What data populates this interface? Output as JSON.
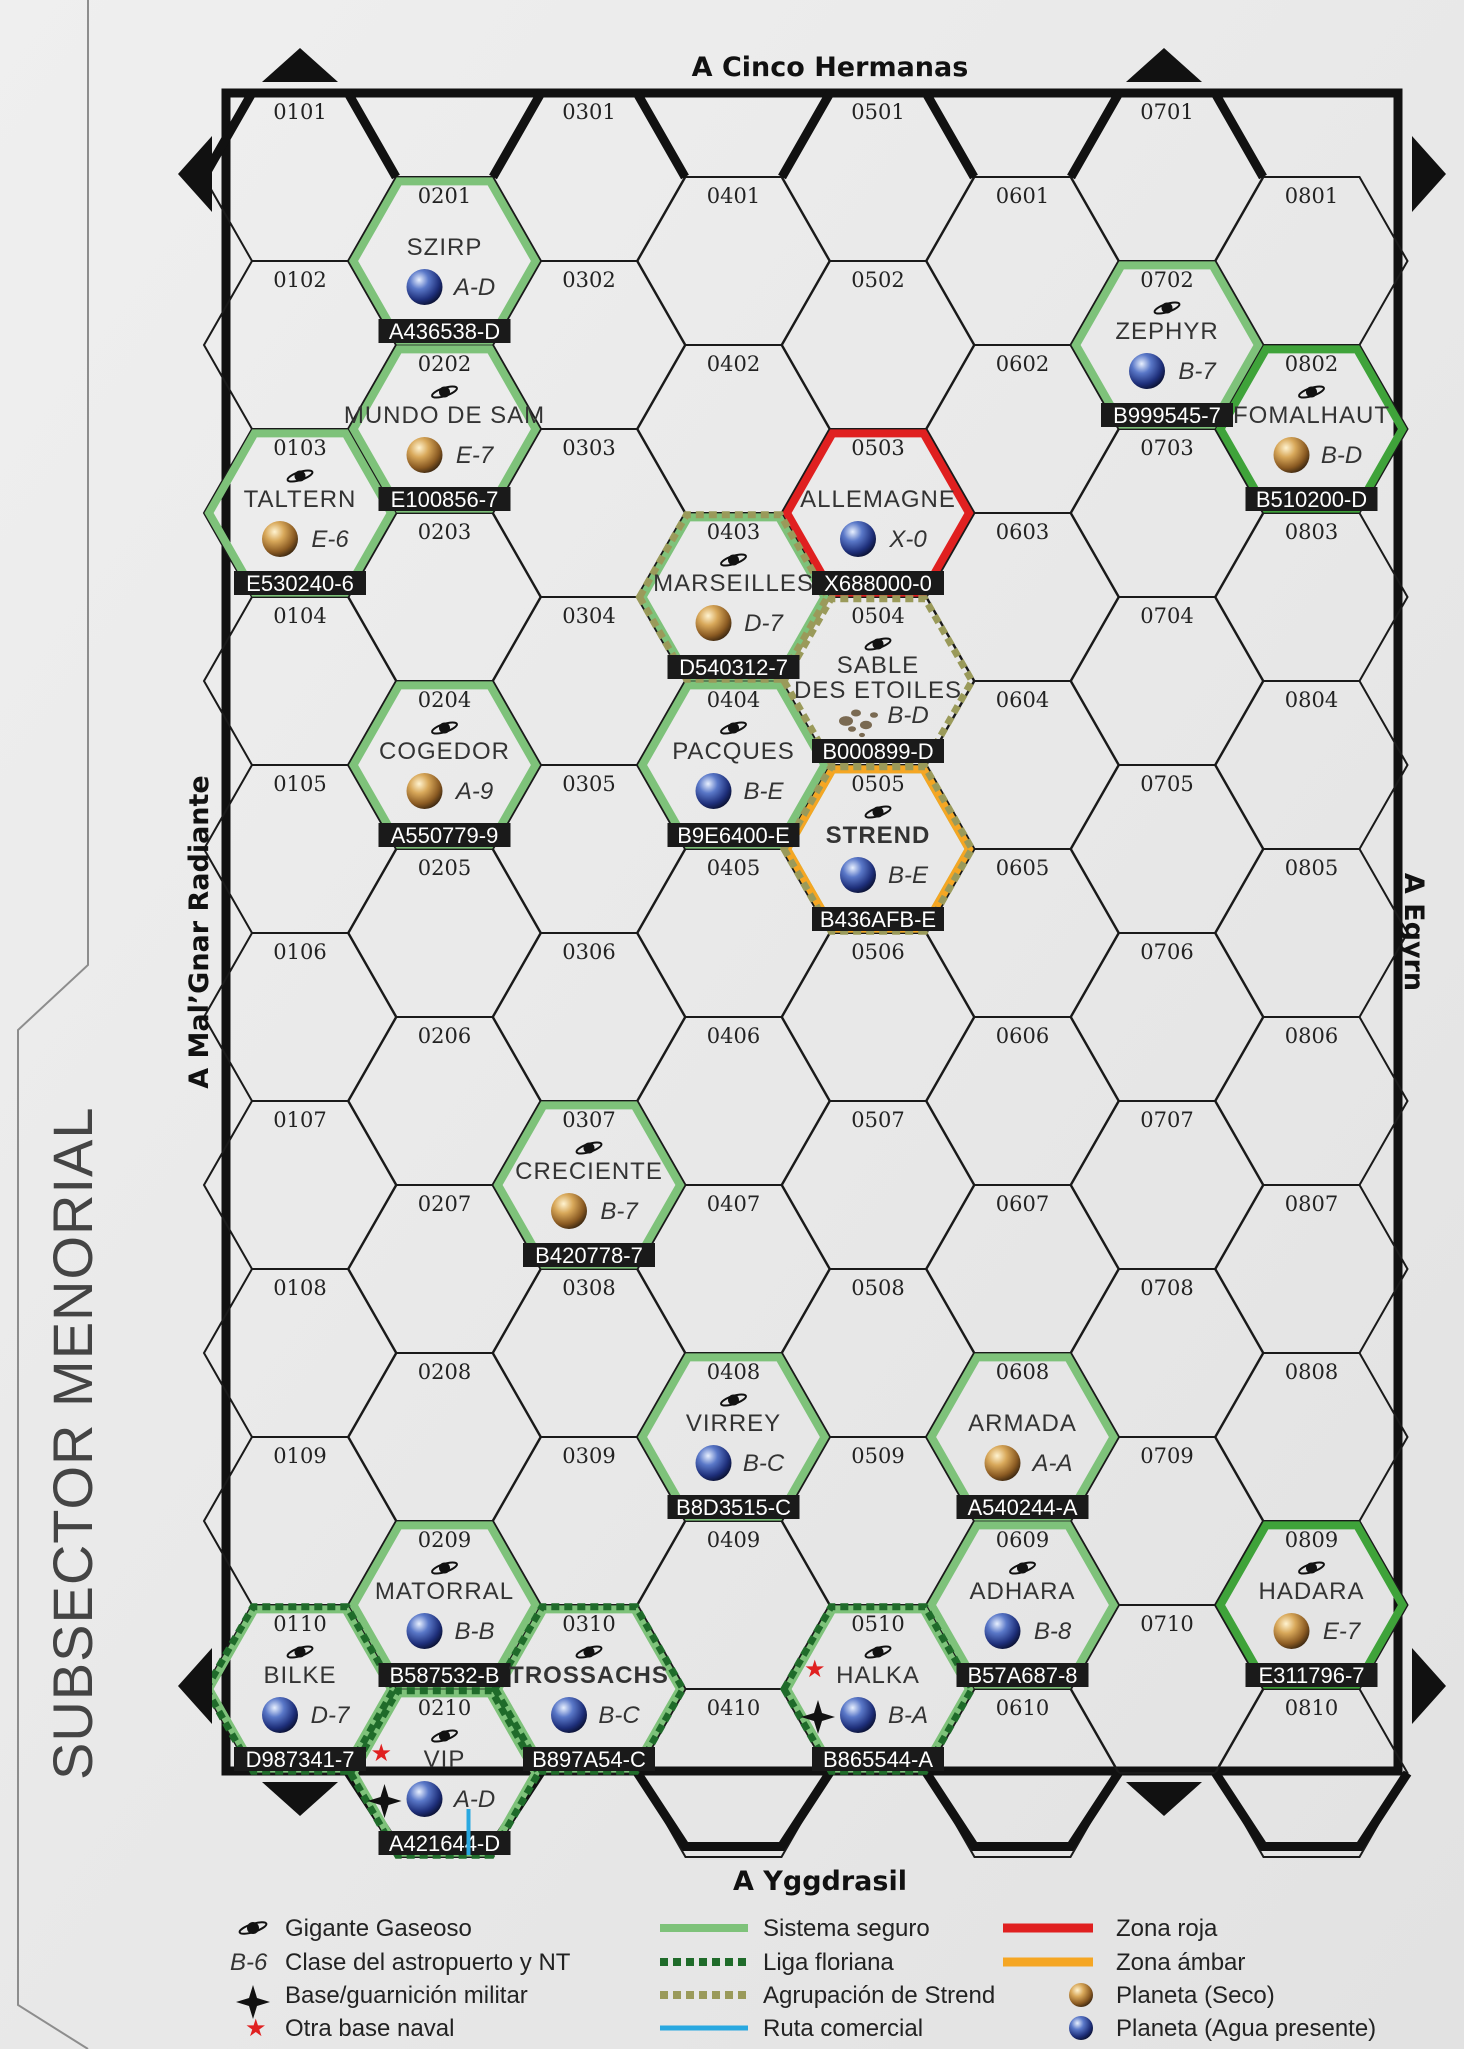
{
  "subsector_title": "SUBSECTOR MENORIAL",
  "directions": {
    "top": "A Cinco Hermanas",
    "bottom": "A Yggdrasil",
    "left": "A Mal’Gnar Radiante",
    "right": "A Egyrn"
  },
  "grid": {
    "cols": 8,
    "rows": 10
  },
  "colors": {
    "safe": "#7ec27a",
    "safe_strong": "#3fa33a",
    "red_zone": "#e02020",
    "amber_zone": "#f5a623",
    "florian": "#1f6b2a",
    "strend_group": "#9a9a5a",
    "trade_route": "#29a8e0",
    "uwp_bg": "#1a1a1a",
    "strend_name": "#e02020"
  },
  "worlds": [
    {
      "hex": "0201",
      "name": "SZIRP",
      "cls": "A-D",
      "uwp": "A436538-D",
      "planet": "water",
      "gas": false
    },
    {
      "hex": "0202",
      "name": "MUNDO DE SAM",
      "cls": "E-7",
      "uwp": "E100856-7",
      "planet": "dry",
      "gas": true
    },
    {
      "hex": "0103",
      "name": "TALTERN",
      "cls": "E-6",
      "uwp": "E530240-6",
      "planet": "dry",
      "gas": true
    },
    {
      "hex": "0204",
      "name": "COGEDOR",
      "cls": "A-9",
      "uwp": "A550779-9",
      "planet": "dry",
      "gas": true
    },
    {
      "hex": "0307",
      "name": "CRECIENTE",
      "cls": "B-7",
      "uwp": "B420778-7",
      "planet": "dry",
      "gas": true
    },
    {
      "hex": "0403",
      "name": "MARSEILLES",
      "cls": "D-7",
      "uwp": "D540312-7",
      "planet": "dry",
      "gas": true
    },
    {
      "hex": "0404",
      "name": "PACQUES",
      "cls": "B-E",
      "uwp": "B9E6400-E",
      "planet": "water",
      "gas": true
    },
    {
      "hex": "0503",
      "name": "ALLEMAGNE",
      "cls": "X-0",
      "uwp": "X688000-0",
      "planet": "water",
      "gas": false
    },
    {
      "hex": "0504",
      "name": "SABLE",
      "name2": "DES ETOILES",
      "cls": "B-D",
      "uwp": "B000899-D",
      "planet": "asteroid",
      "gas": true
    },
    {
      "hex": "0505",
      "name": "STREND",
      "cls": "B-E",
      "uwp": "B436AFB-E",
      "planet": "water",
      "gas": true,
      "highlight": true
    },
    {
      "hex": "0408",
      "name": "VIRREY",
      "cls": "B-C",
      "uwp": "B8D3515-C",
      "planet": "water",
      "gas": true
    },
    {
      "hex": "0608",
      "name": "ARMADA",
      "cls": "A-A",
      "uwp": "A540244-A",
      "planet": "dry",
      "gas": false
    },
    {
      "hex": "0702",
      "name": "ZEPHYR",
      "cls": "B-7",
      "uwp": "B999545-7",
      "planet": "water",
      "gas": true
    },
    {
      "hex": "0802",
      "name": "FOMALHAUT",
      "cls": "B-D",
      "uwp": "B510200-D",
      "planet": "dry",
      "gas": true
    },
    {
      "hex": "0209",
      "name": "MATORRAL",
      "cls": "B-B",
      "uwp": "B587532-B",
      "planet": "water",
      "gas": true
    },
    {
      "hex": "0110",
      "name": "BILKE",
      "cls": "D-7",
      "uwp": "D987341-7",
      "planet": "water",
      "gas": true
    },
    {
      "hex": "0210",
      "name": "VIP",
      "cls": "A-D",
      "uwp": "A421644-D",
      "planet": "water",
      "gas": true,
      "military": true,
      "naval": true
    },
    {
      "hex": "0310",
      "name": "TROSSACHS",
      "cls": "B-C",
      "uwp": "B897A54-C",
      "planet": "water",
      "gas": true,
      "bold": true
    },
    {
      "hex": "0510",
      "name": "HALKA",
      "cls": "B-A",
      "uwp": "B865544-A",
      "planet": "water",
      "gas": true,
      "military": true,
      "naval": true
    },
    {
      "hex": "0609",
      "name": "ADHARA",
      "cls": "B-8",
      "uwp": "B57A687-8",
      "planet": "water",
      "gas": true
    },
    {
      "hex": "0809",
      "name": "HADARA",
      "cls": "E-7",
      "uwp": "E311796-7",
      "planet": "dry",
      "gas": true
    }
  ],
  "zones": {
    "safe": [
      "0201",
      "0202",
      "0103",
      "0204",
      "0307",
      "0403",
      "0404",
      "0505",
      "0408",
      "0608",
      "0702",
      "0209",
      "0110",
      "0210",
      "0310",
      "0510",
      "0609"
    ],
    "safe_strong": [
      "0802",
      "0809"
    ],
    "red": [
      "0503"
    ],
    "amber": [
      "0505"
    ],
    "florian": [
      "0110",
      "0210",
      "0310",
      "0510"
    ],
    "strend_group": [
      "0403",
      "0504",
      "0505"
    ]
  },
  "legend": [
    {
      "key": "gas",
      "text": "Gigante Gaseoso"
    },
    {
      "key": "class",
      "text": "Clase del astropuerto y NT",
      "sample": "B-6"
    },
    {
      "key": "military",
      "text": "Base/guarnición militar"
    },
    {
      "key": "naval",
      "text": "Otra base naval"
    },
    {
      "key": "safe",
      "text": "Sistema seguro"
    },
    {
      "key": "florian",
      "text": "Liga floriana"
    },
    {
      "key": "strend",
      "text": "Agrupación de Strend"
    },
    {
      "key": "trade",
      "text": "Ruta comercial"
    },
    {
      "key": "red",
      "text": "Zona roja"
    },
    {
      "key": "amber",
      "text": "Zona ámbar"
    },
    {
      "key": "dry",
      "text": "Planeta (Seco)"
    },
    {
      "key": "water",
      "text": "Planeta (Agua presente)"
    }
  ]
}
